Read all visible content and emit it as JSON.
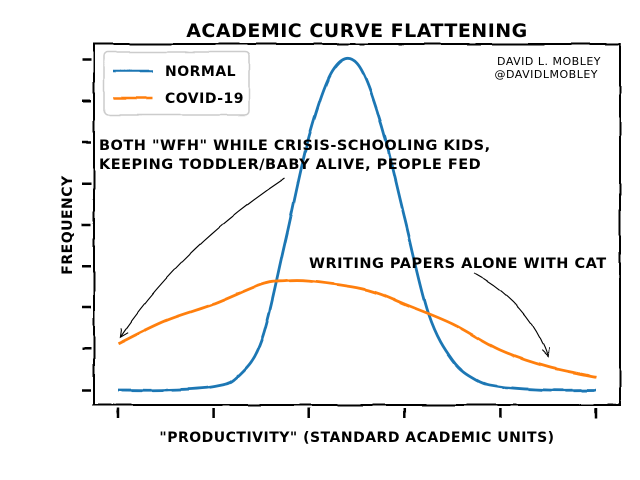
{
  "chart_data": {
    "type": "line",
    "title": "ACADEMIC CURVE FLATTENING",
    "xlabel": "\"PRODUCTIVITY\" (STANDARD ACADEMIC UNITS)",
    "ylabel": "FREQUENCY",
    "credit": [
      "DAVID L. MOBLEY",
      "@DAVIDLMOBLEY"
    ],
    "xlim": [
      0,
      10
    ],
    "ylim": [
      0,
      1
    ],
    "x_ticks": [
      0,
      2,
      4,
      6,
      8,
      10
    ],
    "y_ticks": [
      0,
      0.125,
      0.25,
      0.375,
      0.5,
      0.625,
      0.75,
      0.875,
      1.0
    ],
    "legend_position": "top-left",
    "series": [
      {
        "name": "NORMAL",
        "color": "#1f77b4",
        "x": [
          0,
          1,
          2,
          2.5,
          3,
          3.5,
          4,
          4.5,
          5,
          5.5,
          6,
          6.5,
          7,
          7.5,
          8,
          9,
          10
        ],
        "y": [
          0.0,
          0.0,
          0.01,
          0.04,
          0.15,
          0.45,
          0.77,
          0.97,
          0.99,
          0.81,
          0.52,
          0.23,
          0.09,
          0.03,
          0.01,
          0.0,
          0.0
        ]
      },
      {
        "name": "COVID-19",
        "color": "#ff7f0e",
        "x": [
          0,
          1,
          2,
          3,
          3.5,
          4,
          5,
          5.5,
          6,
          7,
          8,
          9,
          10
        ],
        "y": [
          0.14,
          0.21,
          0.26,
          0.32,
          0.33,
          0.33,
          0.31,
          0.29,
          0.26,
          0.2,
          0.12,
          0.07,
          0.04
        ]
      }
    ],
    "annotations": [
      {
        "lines": [
          "BOTH \"WFH\" WHILE CRISIS-SCHOOLING KIDS,",
          "KEEPING TODDLER/BABY ALIVE, PEOPLE FED"
        ],
        "arrow_to": [
          0.05,
          0.16
        ]
      },
      {
        "lines": [
          "WRITING PAPERS ALONE WITH CAT"
        ],
        "arrow_to": [
          9.0,
          0.1
        ]
      }
    ]
  }
}
